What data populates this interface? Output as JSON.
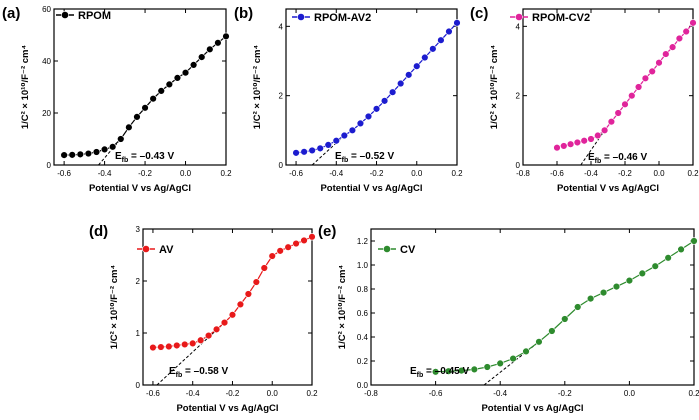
{
  "chart_data": [
    {
      "type": "line",
      "panel_label": "(a)",
      "series_name": "RPOM",
      "color": "#000000",
      "x": [
        -0.6,
        -0.56,
        -0.52,
        -0.48,
        -0.44,
        -0.4,
        -0.36,
        -0.32,
        -0.28,
        -0.24,
        -0.2,
        -0.16,
        -0.12,
        -0.08,
        -0.04,
        0.0,
        0.04,
        0.08,
        0.12,
        0.16,
        0.2
      ],
      "y": [
        3.8,
        3.9,
        4.1,
        4.4,
        5.0,
        6.0,
        7.0,
        10.0,
        14.5,
        18.5,
        22.0,
        25.5,
        28.5,
        31.0,
        33.5,
        35.5,
        38.5,
        41.5,
        44.5,
        47.0,
        49.5
      ],
      "xlim": [
        -0.65,
        0.2
      ],
      "ylim": [
        0,
        60
      ],
      "xticks": [
        -0.6,
        -0.4,
        -0.2,
        0.0,
        0.2
      ],
      "xtick_labels": [
        "-0.6",
        "-0.4",
        "-0.2",
        "0.0",
        "0.2"
      ],
      "yticks": [
        0,
        20,
        40,
        60
      ],
      "ytick_labels": [
        "0",
        "20",
        "40",
        "60"
      ],
      "tangent": [
        [
          -0.43,
          0
        ],
        [
          -0.32,
          10.0
        ]
      ],
      "xlabel": "Potential V vs Ag/AgCl",
      "ylabel_main": "1/C² × 10¹⁰/F⁻² cm⁴",
      "efb_label": "E",
      "efb_sub": "fb",
      "efb_text": " = –0.43 V"
    },
    {
      "type": "line",
      "panel_label": "(b)",
      "series_name": "RPOM-AV2",
      "color": "#1c1ccf",
      "x": [
        -0.6,
        -0.56,
        -0.52,
        -0.48,
        -0.44,
        -0.4,
        -0.36,
        -0.32,
        -0.28,
        -0.24,
        -0.2,
        -0.16,
        -0.12,
        -0.08,
        -0.04,
        0.0,
        0.04,
        0.08,
        0.12,
        0.16,
        0.2
      ],
      "y": [
        0.35,
        0.38,
        0.42,
        0.48,
        0.58,
        0.7,
        0.85,
        1.0,
        1.2,
        1.4,
        1.62,
        1.85,
        2.1,
        2.35,
        2.6,
        2.85,
        3.1,
        3.35,
        3.6,
        3.85,
        4.1
      ],
      "xlim": [
        -0.65,
        0.2
      ],
      "ylim": [
        0,
        4.5
      ],
      "xticks": [
        -0.6,
        -0.4,
        -0.2,
        0.0,
        0.2
      ],
      "xtick_labels": [
        "-0.6",
        "-0.4",
        "-0.2",
        "0.0",
        "0.2"
      ],
      "yticks": [
        0,
        2,
        4
      ],
      "ytick_labels": [
        "0",
        "2",
        "4"
      ],
      "tangent": [
        [
          -0.52,
          0
        ],
        [
          -0.36,
          0.85
        ]
      ],
      "xlabel": "Potential V vs Ag/AgCl",
      "ylabel_main": "1/C² × 10¹⁰/F⁻² cm⁴",
      "efb_label": "E",
      "efb_sub": "fb",
      "efb_text": " = –0.52 V"
    },
    {
      "type": "line",
      "panel_label": "(c)",
      "series_name": "RPOM-CV2",
      "color": "#e0249b",
      "x": [
        -0.6,
        -0.56,
        -0.52,
        -0.48,
        -0.44,
        -0.4,
        -0.36,
        -0.32,
        -0.28,
        -0.24,
        -0.2,
        -0.16,
        -0.12,
        -0.08,
        -0.04,
        0.0,
        0.04,
        0.08,
        0.12,
        0.16,
        0.2
      ],
      "y": [
        0.5,
        0.55,
        0.6,
        0.65,
        0.7,
        0.75,
        0.85,
        1.0,
        1.25,
        1.5,
        1.75,
        2.0,
        2.25,
        2.5,
        2.7,
        2.95,
        3.2,
        3.4,
        3.65,
        3.85,
        4.1
      ],
      "xlim": [
        -0.8,
        0.2
      ],
      "ylim": [
        0,
        4.5
      ],
      "xticks": [
        -0.8,
        -0.6,
        -0.4,
        -0.2,
        0.0,
        0.2
      ],
      "xtick_labels": [
        "-0.8",
        "-0.6",
        "-0.4",
        "-0.2",
        "0.0",
        "0.2"
      ],
      "yticks": [
        0,
        2,
        4
      ],
      "ytick_labels": [
        "0",
        "2",
        "4"
      ],
      "tangent": [
        [
          -0.46,
          0
        ],
        [
          -0.32,
          1.0
        ]
      ],
      "xlabel": "Potential V vs Ag/AgCl",
      "ylabel_main": "1/C² × 10¹⁰/F⁻² cm⁴",
      "efb_label": "E",
      "efb_sub": "fb",
      "efb_text": " = –0.46 V"
    },
    {
      "type": "line",
      "panel_label": "(d)",
      "series_name": "AV",
      "color": "#e8191a",
      "x": [
        -0.6,
        -0.56,
        -0.52,
        -0.48,
        -0.44,
        -0.4,
        -0.36,
        -0.32,
        -0.28,
        -0.24,
        -0.2,
        -0.16,
        -0.12,
        -0.08,
        -0.04,
        0.0,
        0.04,
        0.08,
        0.12,
        0.16,
        0.2
      ],
      "y": [
        0.72,
        0.73,
        0.74,
        0.76,
        0.78,
        0.8,
        0.86,
        0.95,
        1.07,
        1.2,
        1.35,
        1.55,
        1.75,
        1.98,
        2.25,
        2.48,
        2.58,
        2.65,
        2.72,
        2.78,
        2.85
      ],
      "xlim": [
        -0.65,
        0.2
      ],
      "ylim": [
        0,
        3
      ],
      "xticks": [
        -0.6,
        -0.4,
        -0.2,
        0.0,
        0.2
      ],
      "xtick_labels": [
        "-0.6",
        "-0.4",
        "-0.2",
        "0.0",
        "0.2"
      ],
      "yticks": [
        0,
        1,
        2,
        3
      ],
      "ytick_labels": [
        "0",
        "1",
        "2",
        "3"
      ],
      "tangent": [
        [
          -0.58,
          0
        ],
        [
          -0.24,
          1.2
        ]
      ],
      "xlabel": "Potential V vs Ag/AgCl",
      "ylabel_main": "1/C² × 10¹⁰/F⁻² cm⁴",
      "efb_label": "E",
      "efb_sub": "fb",
      "efb_text": " = –0.58 V"
    },
    {
      "type": "line",
      "panel_label": "(e)",
      "series_name": "CV",
      "color": "#2e8b2e",
      "x": [
        -0.6,
        -0.56,
        -0.52,
        -0.48,
        -0.44,
        -0.4,
        -0.36,
        -0.32,
        -0.28,
        -0.24,
        -0.2,
        -0.16,
        -0.12,
        -0.08,
        -0.04,
        0.0,
        0.04,
        0.08,
        0.12,
        0.16,
        0.2
      ],
      "y": [
        0.11,
        0.115,
        0.12,
        0.13,
        0.15,
        0.18,
        0.22,
        0.28,
        0.36,
        0.45,
        0.55,
        0.65,
        0.72,
        0.77,
        0.82,
        0.87,
        0.93,
        0.99,
        1.06,
        1.13,
        1.2
      ],
      "xlim": [
        -0.8,
        0.2
      ],
      "ylim": [
        0,
        1.3
      ],
      "xticks": [
        -0.8,
        -0.6,
        -0.4,
        -0.2,
        0.0,
        0.2
      ],
      "xtick_labels": [
        "-0.8",
        "-0.6",
        "-0.4",
        "-0.2",
        "0.0",
        "0.2"
      ],
      "yticks": [
        0,
        0.2,
        0.4,
        0.6,
        0.8,
        1.0,
        1.2
      ],
      "ytick_labels": [
        "0.0",
        "0.2",
        "0.4",
        "0.6",
        "0.8",
        "1.0",
        "1.2"
      ],
      "tangent": [
        [
          -0.45,
          0
        ],
        [
          -0.28,
          0.36
        ]
      ],
      "xlabel": "Potential V vs Ag/AgCl",
      "ylabel_main": "1/C² × 10¹⁰/F⁻² cm⁴",
      "efb_label": "E",
      "efb_sub": "fb",
      "efb_text": " = –0.45 V"
    }
  ]
}
